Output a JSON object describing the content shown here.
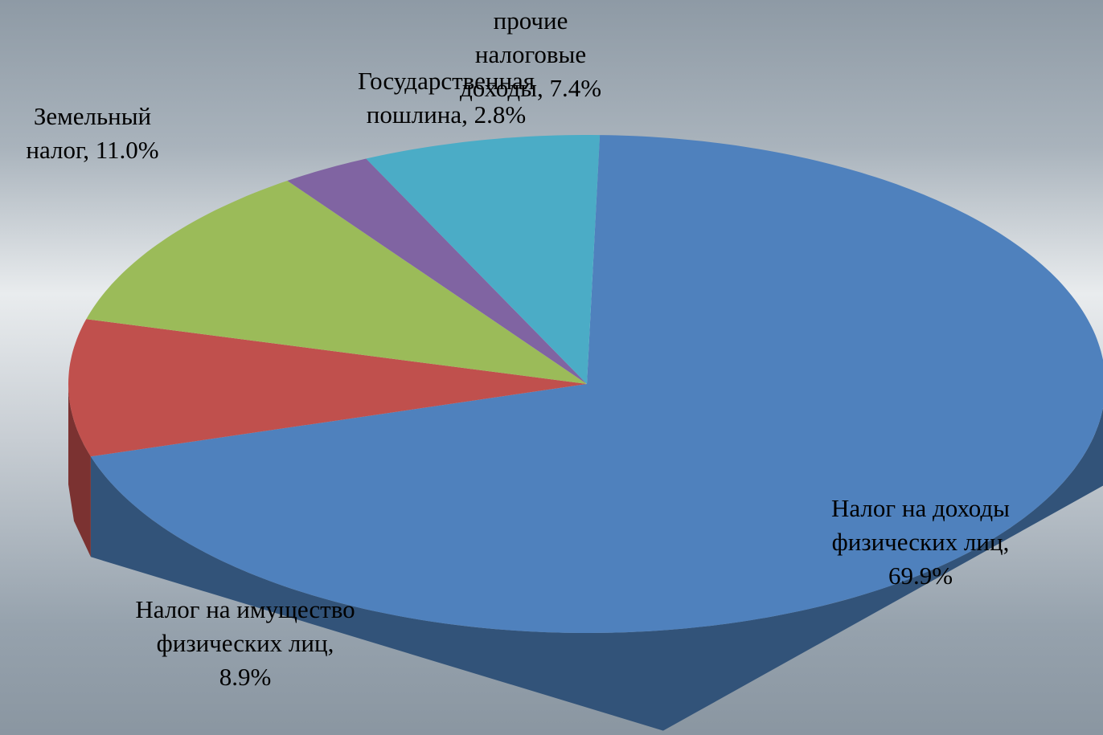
{
  "chart_data": {
    "type": "pie3d",
    "categories": [
      "Налог на доходы физических лиц",
      "Налог на имущество физических лиц",
      "Земельный налог",
      "Государственная пошлина",
      "прочие налоговые доходы"
    ],
    "values": [
      69.9,
      8.9,
      11.0,
      2.8,
      7.4
    ],
    "value_labels": [
      "69.9%",
      "8.9%",
      "11.0%",
      "2.8%",
      "7.4%"
    ],
    "label_separator": ", ",
    "colors": [
      "#4f81bd",
      "#c0504d",
      "#9bbb59",
      "#8064a2",
      "#4bacc6"
    ],
    "side_colors": [
      "#325379",
      "#7b3231",
      "#637935",
      "#503e68",
      "#2e7086"
    ]
  }
}
